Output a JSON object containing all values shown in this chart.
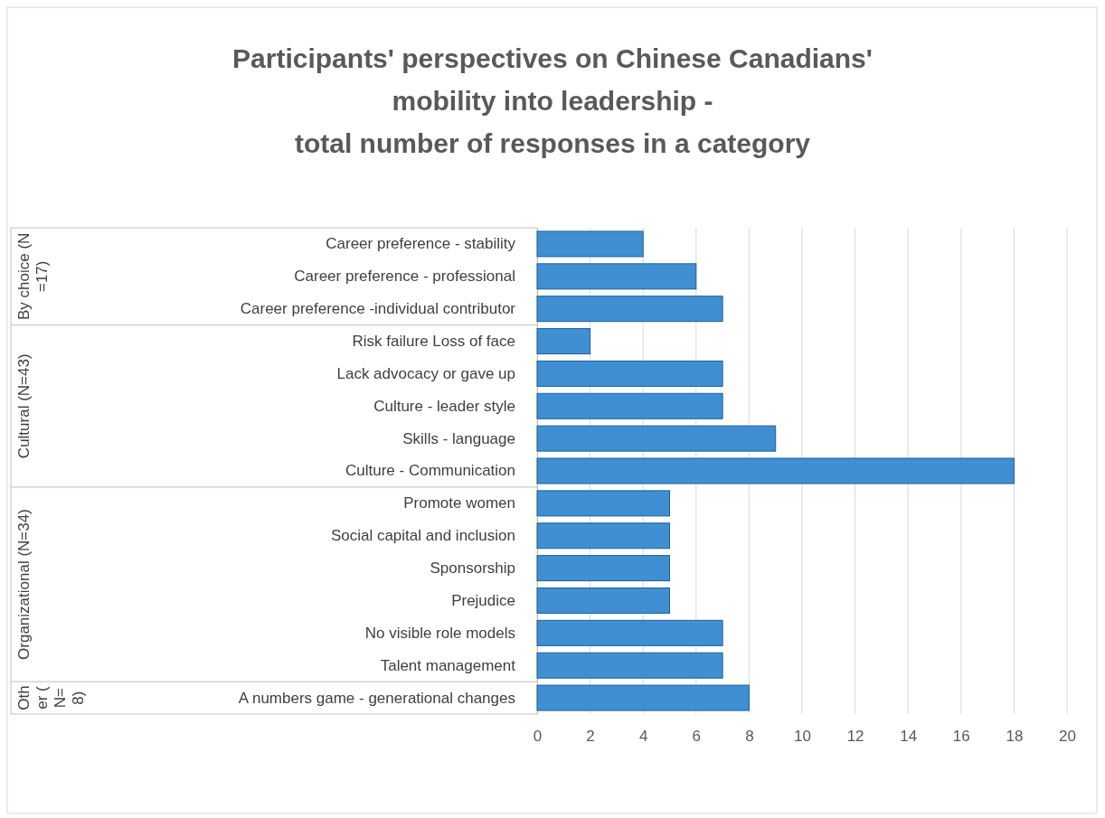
{
  "chart_data": {
    "type": "bar",
    "orientation": "horizontal",
    "title": "Participants' perspectives on Chinese Canadians'\nmobility into leadership -\ntotal number of responses in a category",
    "categories": [
      "Career preference - stability",
      "Career preference - professional",
      "Career preference -individual contributor",
      "Risk failure Loss of face",
      "Lack advocacy or gave up",
      "Culture - leader style",
      "Skills - language",
      "Culture - Communication",
      "Promote women",
      "Social capital and inclusion",
      "Sponsorship",
      "Prejudice",
      "No visible role models",
      "Talent management",
      "A numbers game - generational changes"
    ],
    "values": [
      4,
      6,
      7,
      2,
      7,
      7,
      9,
      18,
      5,
      5,
      5,
      5,
      7,
      7,
      8
    ],
    "color": "#3f8fd2",
    "xlim": [
      0,
      20
    ],
    "xticks": [
      0,
      2,
      4,
      6,
      8,
      10,
      12,
      14,
      16,
      18,
      20
    ],
    "grid": "x",
    "annotations": [
      "By choice (N=17)",
      "Cultural (N=43)",
      "Organizational (N=34)",
      "Other (N=8)"
    ]
  }
}
